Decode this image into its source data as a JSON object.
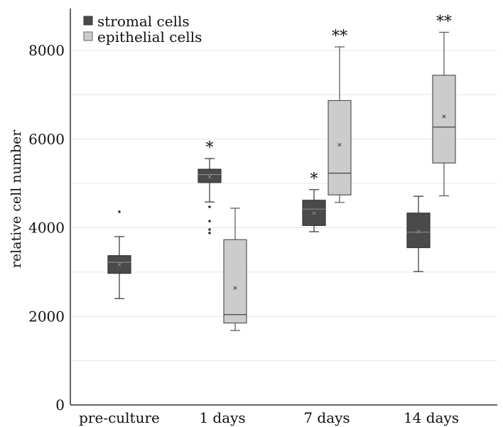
{
  "chart_data": {
    "type": "boxplot",
    "title": "",
    "xlabel": "",
    "ylabel": "relative cell number",
    "ylim": [
      0,
      8800
    ],
    "yticks": [
      0,
      2000,
      4000,
      6000,
      8000
    ],
    "grid": true,
    "legend_position": "top-left",
    "categories": [
      "pre-culture",
      "1 days",
      "7 days",
      "14 days"
    ],
    "series": [
      {
        "name": "stromal cells",
        "color": "#4a4a4a",
        "boxes": [
          {
            "category": "pre-culture",
            "min": 2400,
            "q1": 2970,
            "median": 3220,
            "q3": 3370,
            "max": 3800,
            "mean": 3170,
            "outliers": [
              4360
            ],
            "significance": ""
          },
          {
            "category": "1 days",
            "min": 4580,
            "q1": 5020,
            "median": 5200,
            "q3": 5320,
            "max": 5560,
            "mean": 5150,
            "outliers": [
              3880,
              3960,
              4150,
              4470
            ],
            "significance": "*"
          },
          {
            "category": "7 days",
            "min": 3910,
            "q1": 4050,
            "median": 4420,
            "q3": 4620,
            "max": 4860,
            "mean": 4330,
            "outliers": [],
            "significance": "*"
          },
          {
            "category": "14 days",
            "min": 3010,
            "q1": 3550,
            "median": 3900,
            "q3": 4330,
            "max": 4710,
            "mean": 3910,
            "outliers": [],
            "significance": ""
          }
        ]
      },
      {
        "name": "epithelial cells",
        "color": "#cccccc",
        "boxes": [
          {
            "category": "1 days",
            "min": 1680,
            "q1": 1850,
            "median": 2040,
            "q3": 3730,
            "max": 4440,
            "mean": 2640,
            "outliers": [],
            "significance": ""
          },
          {
            "category": "7 days",
            "min": 4570,
            "q1": 4740,
            "median": 5230,
            "q3": 6870,
            "max": 8080,
            "mean": 5870,
            "outliers": [],
            "significance": "**"
          },
          {
            "category": "14 days",
            "min": 4720,
            "q1": 5460,
            "median": 6270,
            "q3": 7440,
            "max": 8410,
            "mean": 6510,
            "outliers": [],
            "significance": "**"
          }
        ]
      }
    ]
  }
}
